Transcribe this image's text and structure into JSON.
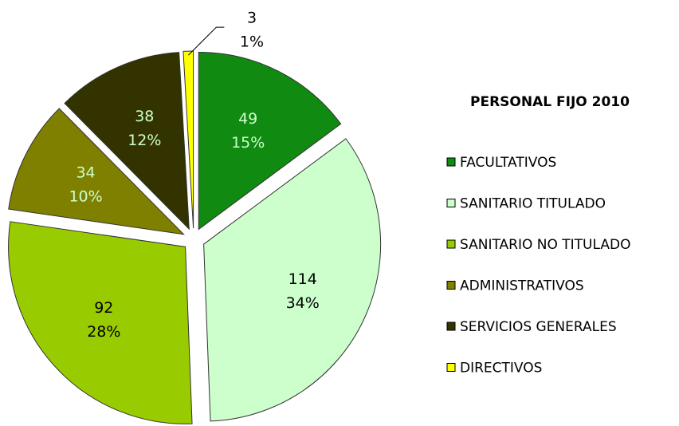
{
  "chart_data": {
    "type": "pie",
    "title": "PERSONAL FIJO 2010",
    "categories": [
      "FACULTATIVOS",
      "SANITARIO TITULADO",
      "SANITARIO NO TITULADO",
      "ADMINISTRATIVOS",
      "SERVICIOS GENERALES",
      "DIRECTIVOS"
    ],
    "values": [
      49,
      114,
      92,
      34,
      38,
      3
    ],
    "percent_labels": [
      "15%",
      "34%",
      "28%",
      "10%",
      "12%",
      "1%"
    ],
    "colors": [
      "#108a10",
      "#ccffcc",
      "#99cc00",
      "#808000",
      "#333300",
      "#ffff00"
    ],
    "legend": "right"
  }
}
